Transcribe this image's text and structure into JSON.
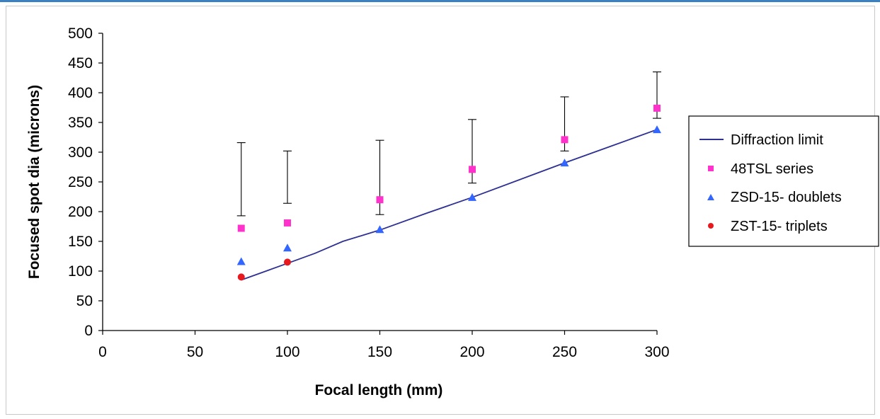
{
  "chart_data": {
    "type": "scatter",
    "xlabel": "Focal length (mm)",
    "ylabel": "Focused spot dia (microns)",
    "xlim": [
      0,
      300
    ],
    "ylim": [
      0,
      500
    ],
    "x_ticks": [
      0,
      50,
      100,
      150,
      200,
      250,
      300
    ],
    "y_ticks": [
      0,
      50,
      100,
      150,
      200,
      250,
      300,
      350,
      400,
      450,
      500
    ],
    "grid": false,
    "legend_position": "right",
    "series": [
      {
        "name": "Diffraction limit",
        "kind": "line",
        "color": "#2e3192",
        "x": [
          75,
          100,
          115,
          130,
          150,
          175,
          200,
          225,
          250,
          275,
          300
        ],
        "y": [
          85,
          113,
          130,
          150,
          169,
          197,
          224,
          253,
          282,
          310,
          338
        ]
      },
      {
        "name": "48TSL series",
        "kind": "square",
        "color": "#ff33cc",
        "x": [
          75,
          100,
          150,
          200,
          250,
          300
        ],
        "y": [
          172,
          181,
          220,
          271,
          321,
          374
        ],
        "error_low": [
          193,
          214,
          195,
          248,
          302,
          357
        ],
        "error_high": [
          316,
          302,
          320,
          355,
          393,
          435
        ]
      },
      {
        "name": "ZSD-15- doublets",
        "kind": "triangle",
        "color": "#3366ff",
        "x": [
          75,
          100,
          150,
          200,
          250,
          300
        ],
        "y": [
          116,
          139,
          170,
          224,
          282,
          338
        ]
      },
      {
        "name": "ZST-15- triplets",
        "kind": "circle",
        "color": "#e8191e",
        "x": [
          75,
          100
        ],
        "y": [
          90,
          115
        ]
      }
    ]
  }
}
